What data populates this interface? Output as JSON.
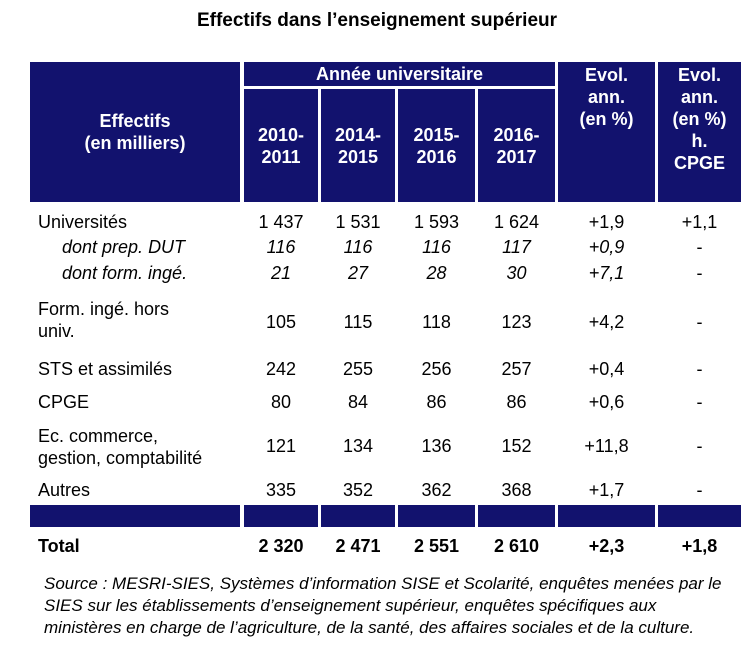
{
  "title": "Effectifs dans l’enseignement supérieur",
  "header": {
    "row_label": "Effectifs\n(en milliers)",
    "group": "Année universitaire",
    "years": [
      "2010-\n2011",
      "2014-\n2015",
      "2015-\n2016",
      "2016-\n2017"
    ],
    "evol": "Evol.\nann.\n(en %)",
    "evol_h": "Evol.\nann.\n(en %)\nh.\nCPGE"
  },
  "rows": [
    {
      "label": "Universités",
      "v": [
        "1 437",
        "1 531",
        "1 593",
        "1 624"
      ],
      "evol": "+1,9",
      "evol_h": "+1,1"
    },
    {
      "label": "dont prep. DUT",
      "v": [
        "116",
        "116",
        "116",
        "117"
      ],
      "evol": "+0,9",
      "evol_h": "-"
    },
    {
      "label": "dont form. ingé.",
      "v": [
        "21",
        "27",
        "28",
        "30"
      ],
      "evol": "+7,1",
      "evol_h": "-"
    },
    {
      "label": "Form. ingé. hors\nuniv.",
      "v": [
        "105",
        "115",
        "118",
        "123"
      ],
      "evol": "+4,2",
      "evol_h": "-"
    },
    {
      "label": "STS et assimilés",
      "v": [
        "242",
        "255",
        "256",
        "257"
      ],
      "evol": "+0,4",
      "evol_h": "-"
    },
    {
      "label": "CPGE",
      "v": [
        "80",
        "84",
        "86",
        "86"
      ],
      "evol": "+0,6",
      "evol_h": "-"
    },
    {
      "label": "Ec. commerce,\ngestion, comptabilité",
      "v": [
        "121",
        "134",
        "136",
        "152"
      ],
      "evol": "+11,8",
      "evol_h": "-"
    },
    {
      "label": "Autres",
      "v": [
        "335",
        "352",
        "362",
        "368"
      ],
      "evol": "+1,7",
      "evol_h": "-"
    }
  ],
  "total": {
    "label": "Total",
    "v": [
      "2 320",
      "2 471",
      "2 551",
      "2 610"
    ],
    "evol": "+2,3",
    "evol_h": "+1,8"
  },
  "source": "Source : MESRI-SIES, Systèmes d’information SISE et Scolarité, enquêtes menées par le SIES sur les établissements d’enseignement supérieur, enquêtes spécifiques aux ministères en charge de l’agriculture, de la santé, des affaires sociales et de la culture."
}
